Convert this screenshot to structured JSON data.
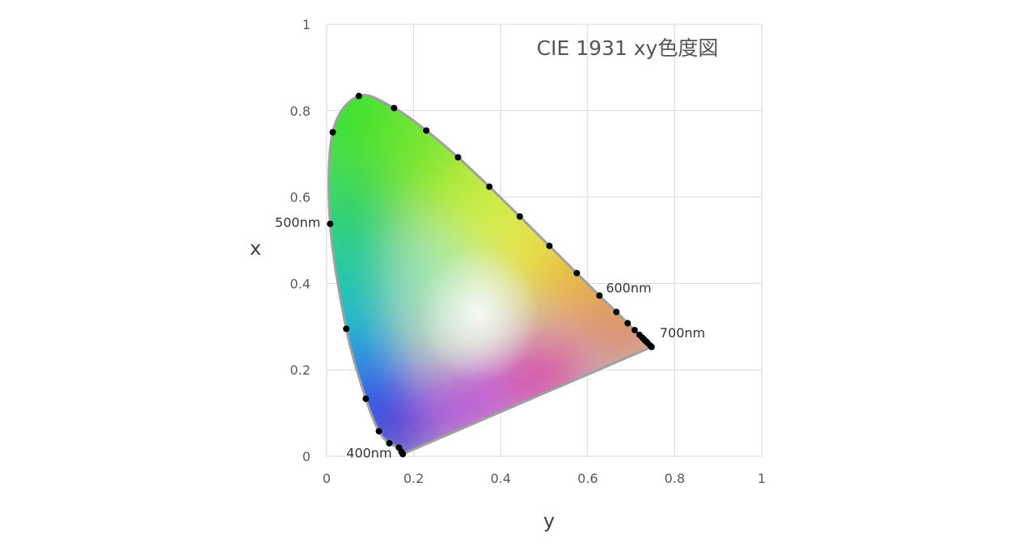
{
  "chart_data": {
    "type": "scatter",
    "title": "CIE 1931 xy色度図",
    "xlabel": "y",
    "ylabel": "x",
    "xlim": [
      0,
      1
    ],
    "ylim": [
      0,
      1
    ],
    "x_ticks": [
      "0",
      "0.2",
      "0.4",
      "0.6",
      "0.8",
      "1"
    ],
    "y_ticks": [
      "0",
      "0.2",
      "0.4",
      "0.6",
      "0.8",
      "1"
    ],
    "grid": true,
    "legend": "none",
    "colors": {
      "outline": "#a0a0a0",
      "points": "#000000",
      "grid": "#d9d9d9"
    },
    "series": [
      {
        "points": [
          {
            "x": 0.175,
            "y": 0.005
          },
          {
            "x": 0.172,
            "y": 0.01
          },
          {
            "x": 0.166,
            "y": 0.02
          },
          {
            "x": 0.144,
            "y": 0.03
          },
          {
            "x": 0.12,
            "y": 0.058
          },
          {
            "x": 0.09,
            "y": 0.133
          },
          {
            "x": 0.045,
            "y": 0.295
          },
          {
            "x": 0.008,
            "y": 0.538
          },
          {
            "x": 0.014,
            "y": 0.75
          },
          {
            "x": 0.074,
            "y": 0.834
          },
          {
            "x": 0.155,
            "y": 0.806
          },
          {
            "x": 0.229,
            "y": 0.754
          },
          {
            "x": 0.302,
            "y": 0.692
          },
          {
            "x": 0.374,
            "y": 0.624
          },
          {
            "x": 0.444,
            "y": 0.555
          },
          {
            "x": 0.512,
            "y": 0.487
          },
          {
            "x": 0.575,
            "y": 0.424
          },
          {
            "x": 0.627,
            "y": 0.372
          },
          {
            "x": 0.666,
            "y": 0.334
          },
          {
            "x": 0.692,
            "y": 0.308
          },
          {
            "x": 0.708,
            "y": 0.292
          },
          {
            "x": 0.719,
            "y": 0.281
          },
          {
            "x": 0.726,
            "y": 0.274
          },
          {
            "x": 0.73,
            "y": 0.27
          },
          {
            "x": 0.734,
            "y": 0.266
          },
          {
            "x": 0.738,
            "y": 0.262
          },
          {
            "x": 0.744,
            "y": 0.256
          },
          {
            "x": 0.747,
            "y": 0.253
          }
        ]
      }
    ],
    "annotations": [
      {
        "text": "400nm",
        "x": 0.172,
        "y": 0.005,
        "anchor": "left"
      },
      {
        "text": "500nm",
        "x": 0.008,
        "y": 0.538,
        "anchor": "left"
      },
      {
        "text": "600nm",
        "x": 0.627,
        "y": 0.372,
        "anchor": "upper-right"
      },
      {
        "text": "700nm",
        "x": 0.747,
        "y": 0.253,
        "anchor": "right"
      }
    ]
  }
}
